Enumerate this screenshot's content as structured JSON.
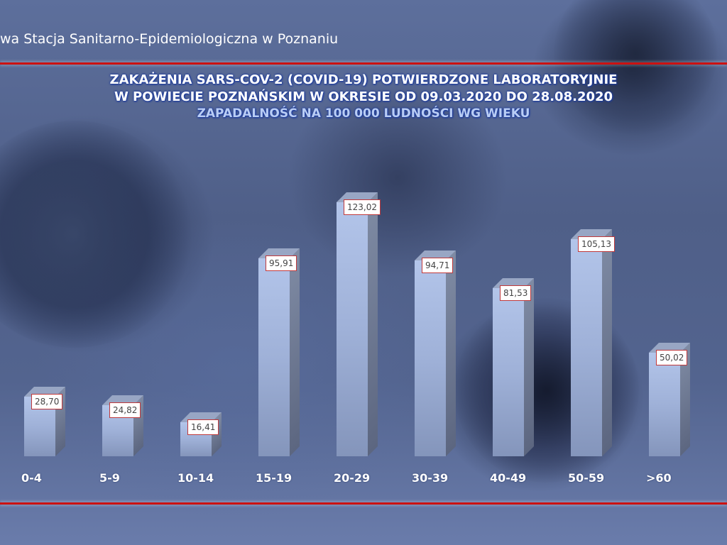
{
  "header": {
    "institution": "wa Stacja Sanitarno-Epidemiologiczna w Poznaniu"
  },
  "colors": {
    "rule": "#cc1111",
    "title": "#ffffff",
    "subtitle": "#b9cdf5",
    "label_border": "#c0393b",
    "bar_front": "#a7b9e0",
    "bar_side": "#6b7690"
  },
  "chart_data": {
    "type": "bar",
    "title": "ZAKAŻENIA SARS-COV-2 (COVID-19) POTWIERDZONE LABORATORYJNIE W POWIECIE POZNAŃSKIM W OKRESIE OD 09.03.2020 DO 28.08.2020",
    "title_line1": "ZAKAŻENIA SARS-COV-2 (COVID-19) POTWIERDZONE LABORATORYJNIE",
    "title_line2": "W POWIECIE POZNAŃSKIM W OKRESIE OD 09.03.2020 DO 28.08.2020",
    "subtitle": "ZAPADALNOŚĆ NA 100 000 LUDNOŚCI WG WIEKU",
    "xlabel": "",
    "ylabel": "",
    "categories": [
      "0-4",
      "5-9",
      "10-14",
      "15-19",
      "20-29",
      "30-39",
      "40-49",
      "50-59",
      ">60"
    ],
    "values": [
      28.7,
      24.82,
      16.41,
      95.91,
      123.02,
      94.71,
      81.53,
      105.13,
      50.02
    ],
    "value_labels": [
      "28,70",
      "24,82",
      "16,41",
      "95,91",
      "123,02",
      "94,71",
      "81,53",
      "105,13",
      "50,02"
    ],
    "ylim": [
      0,
      130
    ],
    "grid": false,
    "legend": "none",
    "style": "3d-columns"
  }
}
